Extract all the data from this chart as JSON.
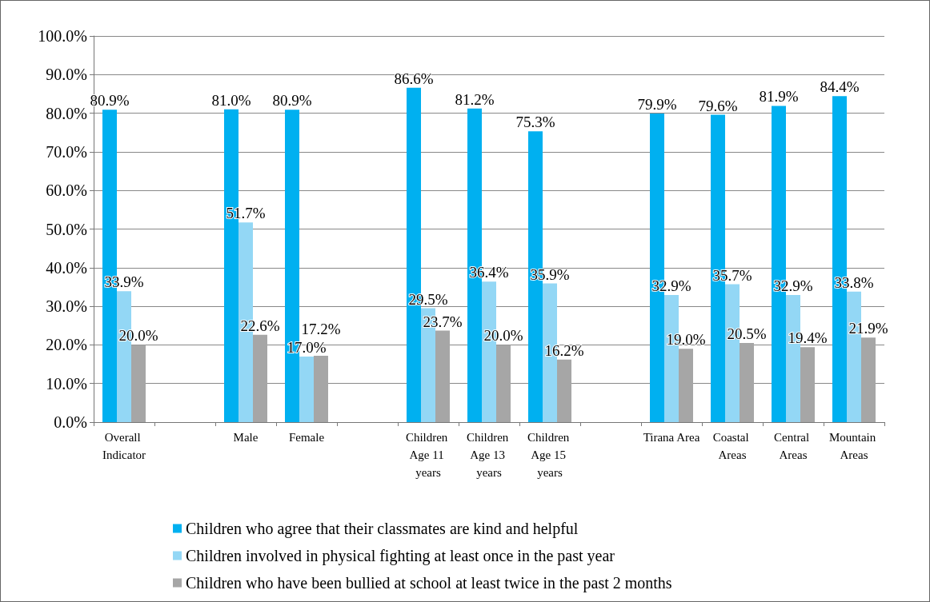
{
  "chart_data": {
    "type": "bar",
    "categories": [
      "Overall Indicator",
      null,
      "Male",
      "Female",
      null,
      "Children Age 11 years",
      "Children Age 13 years",
      "Children Age 15 years",
      null,
      "Tirana Area",
      "Coastal Areas",
      "Central Areas",
      "Mountain Areas"
    ],
    "series": [
      {
        "name": "Children who agree that their classmates are kind and helpful",
        "color": "#00b0f0",
        "values": [
          80.9,
          null,
          81.0,
          80.9,
          null,
          86.6,
          81.2,
          75.3,
          null,
          79.9,
          79.6,
          81.9,
          84.4
        ],
        "value_labels": [
          "80.9%",
          null,
          "81.0%",
          "80.9%",
          null,
          "86.6%",
          "81.2%",
          "75.3%",
          null,
          "79.9%",
          "79.6%",
          "81.9%",
          "84.4%"
        ]
      },
      {
        "name": "Children involved in physical fighting at least once in the past year",
        "color": "#93d7f5",
        "values": [
          33.9,
          null,
          51.7,
          17.0,
          null,
          29.5,
          36.4,
          35.9,
          null,
          32.9,
          35.7,
          32.9,
          33.8
        ],
        "value_labels": [
          "33.9%",
          null,
          "51.7%",
          "17.0%",
          null,
          "29.5%",
          "36.4%",
          "35.9%",
          null,
          "32.9%",
          "35.7%",
          "32.9%",
          "33.8%"
        ]
      },
      {
        "name": "Children who have been bullied at school at least twice in the past 2 months",
        "color": "#a6a6a6",
        "values": [
          20.0,
          null,
          22.6,
          17.2,
          null,
          23.7,
          20.0,
          16.2,
          null,
          19.0,
          20.5,
          19.4,
          21.9
        ],
        "value_labels": [
          "20.0%",
          null,
          "22.6%",
          "17.2%",
          null,
          "23.7%",
          "20.0%",
          "16.2%",
          null,
          "19.0%",
          "20.5%",
          "19.4%",
          "21.9%"
        ]
      }
    ],
    "ylim": [
      0,
      100
    ],
    "yticks": [
      {
        "value": 0,
        "label": "0.0%"
      },
      {
        "value": 10,
        "label": "10.0%"
      },
      {
        "value": 20,
        "label": "20.0%"
      },
      {
        "value": 30,
        "label": "30.0%"
      },
      {
        "value": 40,
        "label": "40.0%"
      },
      {
        "value": 50,
        "label": "50.0%"
      },
      {
        "value": 60,
        "label": "60.0%"
      },
      {
        "value": 70,
        "label": "70.0%"
      },
      {
        "value": 80,
        "label": "80.0%"
      },
      {
        "value": 90,
        "label": "90.0%"
      },
      {
        "value": 100,
        "label": "100.0%"
      }
    ],
    "grid": "y",
    "legend": "bottom"
  }
}
